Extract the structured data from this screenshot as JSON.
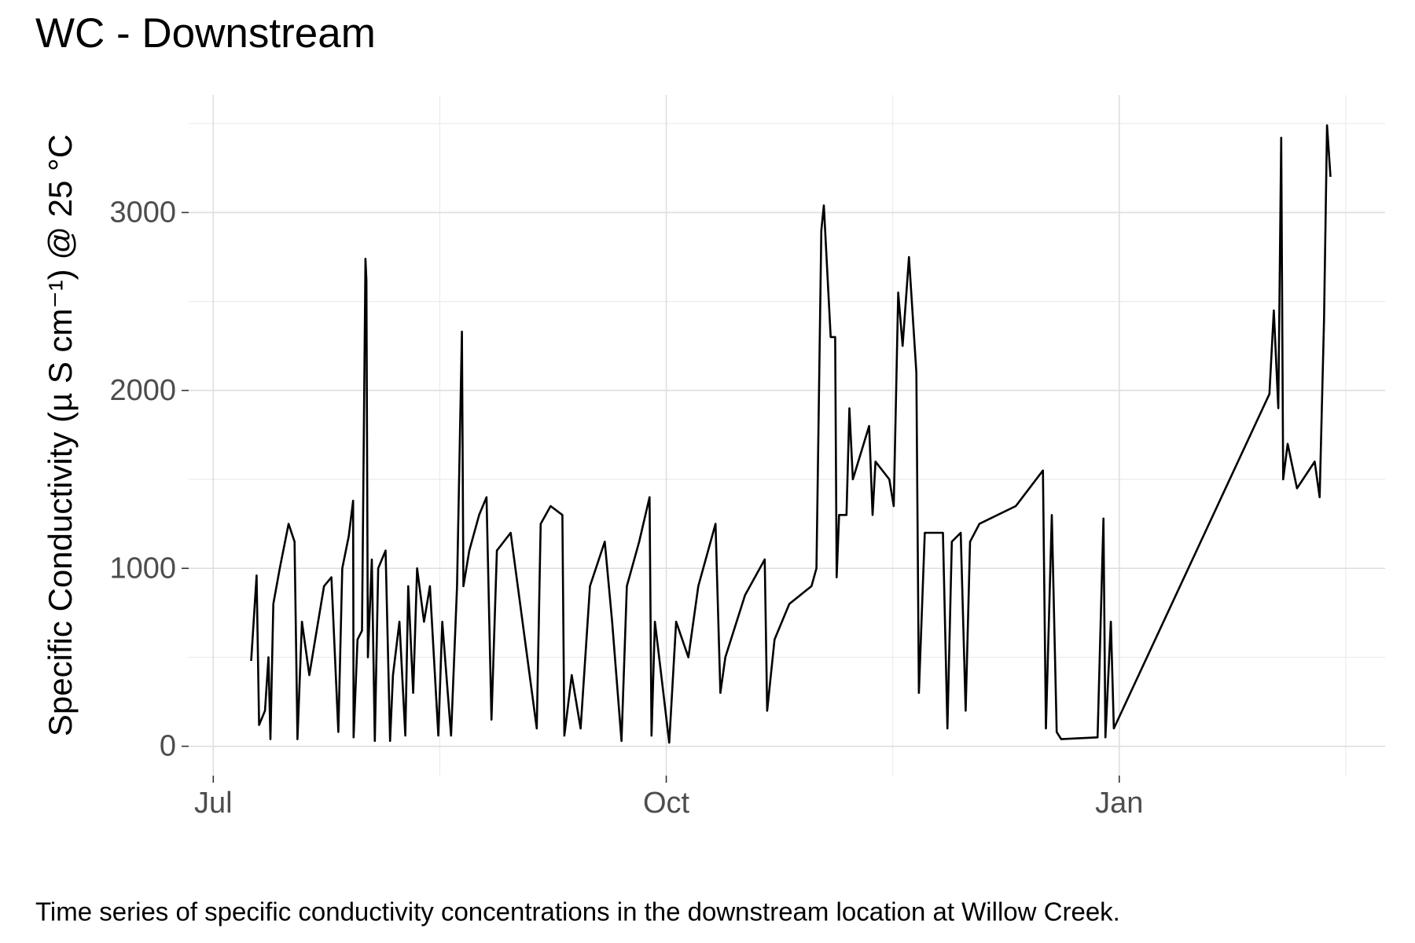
{
  "chart_data": {
    "type": "line",
    "title": "WC - Downstream",
    "y_label": "Specific Conductivity (µ S cm⁻¹) @ 25 °C",
    "caption": "Time series of specific conductivity concentrations in the downstream location at Willow Creek.",
    "xlim": [
      -5,
      238
    ],
    "xticks": [
      {
        "value": 0,
        "label": "Jul"
      },
      {
        "value": 92,
        "label": "Oct"
      },
      {
        "value": 184,
        "label": "Jan"
      }
    ],
    "xminor": [
      46,
      138,
      230
    ],
    "ylim": [
      -165,
      3660
    ],
    "yticks": [
      0,
      1000,
      2000,
      3000
    ],
    "yminor": [
      500,
      1500,
      2500,
      3500
    ],
    "grid": true,
    "series": [
      {
        "name": "Specific Conductivity",
        "color": "#000000",
        "x": [
          7.7,
          8.8,
          9.3,
          10.5,
          11.2,
          11.6,
          12.2,
          13.5,
          15.3,
          16.5,
          17.1,
          18,
          19.5,
          21,
          22.5,
          24,
          25.4,
          26.2,
          27.5,
          28.4,
          28.5,
          29.3,
          30.2,
          30.9,
          31.1,
          31.4,
          32.2,
          32.8,
          33.5,
          35,
          35.9,
          36.5,
          37.8,
          39,
          39.6,
          40.6,
          41.4,
          42.8,
          44,
          45.7,
          46.5,
          48.3,
          49.5,
          50.5,
          50.8,
          52,
          54,
          55.5,
          56.5,
          57.6,
          60.4,
          65.7,
          66.5,
          68.5,
          70.9,
          71.3,
          72.8,
          74.6,
          76.5,
          79.5,
          81,
          82.9,
          84,
          86.5,
          88.6,
          89,
          89.7,
          91.2,
          92.6,
          94,
          96.5,
          98.5,
          102,
          103,
          104,
          108,
          112,
          112.5,
          114,
          117,
          121.5,
          122.5,
          123.5,
          124,
          125.4,
          126.3,
          126.6,
          127.1,
          128.6,
          129.2,
          129.9,
          133.2,
          133.9,
          134.5,
          137.3,
          138.2,
          139.1,
          140,
          141.3,
          142.8,
          143.3,
          144.5,
          148.2,
          149.1,
          150,
          151.8,
          152.8,
          153.7,
          155.6,
          163,
          168.5,
          169.1,
          170.3,
          171.3,
          172.2,
          179.6,
          180.8,
          181.2,
          182.3,
          182.9,
          214.5,
          215.4,
          216.3,
          216.9,
          217.3,
          218.2,
          220.1,
          223.7,
          224.7,
          225.6,
          226.2,
          226.9
        ],
        "values": [
          480,
          960,
          120,
          200,
          500,
          40,
          800,
          1000,
          1250,
          1150,
          40,
          700,
          400,
          650,
          900,
          950,
          80,
          1000,
          1180,
          1380,
          50,
          600,
          650,
          2740,
          2620,
          500,
          1050,
          30,
          1000,
          1100,
          30,
          400,
          700,
          60,
          900,
          300,
          1000,
          700,
          900,
          60,
          700,
          60,
          900,
          2330,
          900,
          1100,
          1300,
          1400,
          150,
          1100,
          1200,
          100,
          1250,
          1350,
          1300,
          60,
          400,
          100,
          900,
          1150,
          700,
          30,
          900,
          1150,
          1400,
          60,
          700,
          350,
          20,
          700,
          500,
          900,
          1250,
          300,
          500,
          850,
          1050,
          200,
          600,
          800,
          900,
          1000,
          2900,
          3040,
          2300,
          2300,
          950,
          1300,
          1300,
          1900,
          1500,
          1800,
          1300,
          1600,
          1500,
          1350,
          2550,
          2250,
          2750,
          2100,
          300,
          1200,
          1200,
          100,
          1150,
          1200,
          200,
          1150,
          1250,
          1350,
          1550,
          100,
          1300,
          80,
          40,
          50,
          1280,
          50,
          700,
          100,
          1980,
          2450,
          1900,
          3420,
          1500,
          1700,
          1450,
          1600,
          1400,
          2400,
          3490,
          3200
        ]
      }
    ]
  }
}
